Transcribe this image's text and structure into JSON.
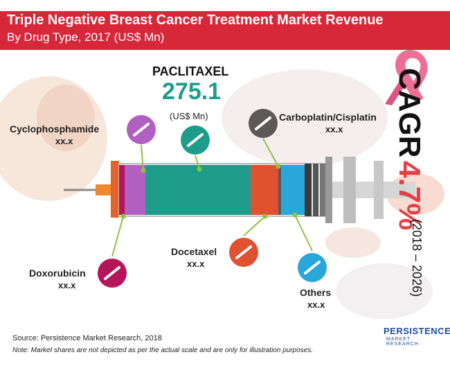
{
  "header": {
    "title": "Triple Negative Breast Cancer Treatment Market Revenue",
    "subtitle": "By Drug Type, 2017 (US$ Mn)"
  },
  "highlight": {
    "name": "PACLITAXEL",
    "value": "275.1",
    "unit": "(US$ Mn)"
  },
  "cagr": {
    "label": "CAGR",
    "value": "4.7%",
    "period": "(2018 – 2026)"
  },
  "chart_data": {
    "type": "bar",
    "title": "Triple Negative Breast Cancer Treatment Market Revenue",
    "subtitle": "By Drug Type, 2017 (US$ Mn)",
    "categories": [
      "Doxorubicin",
      "Cyclophosphamide",
      "Paclitaxel",
      "Docetaxel",
      "Carboplatin/Cisplatin",
      "Others"
    ],
    "series": [
      {
        "labels": [
          "Doxorubicin",
          "Cyclophosphamide",
          "PACLITAXEL",
          "Docetaxel",
          "Carboplatin/Cisplatin",
          "Others"
        ],
        "value_labels": [
          "xx.x",
          "xx.x",
          "275.1",
          "xx.x",
          "xx.x",
          "xx.x"
        ],
        "values": [
          null,
          null,
          275.1,
          null,
          null,
          null
        ]
      }
    ],
    "colors": [
      "#b5165a",
      "#b15fc0",
      "#1e9c8a",
      "#e0512f",
      "#5d5958",
      "#2aa7d9"
    ]
  },
  "drugs": [
    {
      "name": "Doxorubicin",
      "value": "xx.x",
      "color": "#b5165a",
      "icon": "pill-icon"
    },
    {
      "name": "Cyclophosphamide",
      "value": "xx.x",
      "color": "#b15fc0",
      "icon": "pill-icon"
    },
    {
      "name": "Docetaxel",
      "value": "xx.x",
      "color": "#e0512f",
      "icon": "pill-icon"
    },
    {
      "name": "Carboplatin/Cisplatin",
      "value": "xx.x",
      "color": "#5d5958",
      "icon": "pill-icon"
    },
    {
      "name": "Others",
      "value": "xx.x",
      "color": "#2aa7d9",
      "icon": "pill-icon"
    }
  ],
  "paclitaxel_color": "#1e9c8a",
  "footer": {
    "source": "Source: Persistence Market Research, 2018",
    "note": "Note: Market shares are not depicted as per the actual scale and are only for illustration purposes."
  },
  "logo": {
    "name": "PERSISTENCE",
    "tagline": "MARKET RESEARCH"
  },
  "accent": "#d7283a"
}
